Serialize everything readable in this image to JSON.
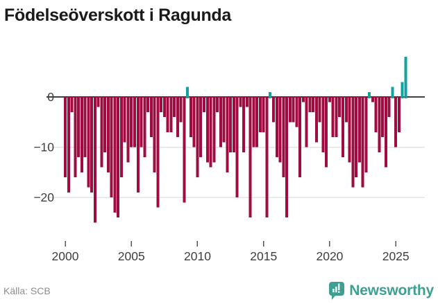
{
  "header": {
    "title": "Födelseöverskott i Ragunda"
  },
  "footer": {
    "source": "Källa: SCB",
    "logo_text": "Newsworthy"
  },
  "chart_data": {
    "type": "bar",
    "title": "Födelseöverskott i Ragunda",
    "frequency": "quarterly",
    "x_axis": {
      "start_year": 2000,
      "bars_per_year": 4,
      "ticks": [
        {
          "label": "2000",
          "year": 2000
        },
        {
          "label": "2005",
          "year": 2005
        },
        {
          "label": "2010",
          "year": 2010
        },
        {
          "label": "2015",
          "year": 2015
        },
        {
          "label": "2020",
          "year": 2020
        },
        {
          "label": "2025",
          "year": 2025
        }
      ]
    },
    "y_axis": {
      "ticks": [
        {
          "label": "0",
          "value": 0
        },
        {
          "label": "−10",
          "value": -10
        },
        {
          "label": "−20",
          "value": -20
        }
      ],
      "ylim": [
        -26,
        8.5
      ],
      "grid": true
    },
    "values": [
      -16,
      -19,
      -3,
      -16,
      -12,
      -15,
      -12,
      -18,
      -19,
      -25,
      -2,
      -14,
      -11,
      -15,
      -20,
      -23,
      -24,
      -16,
      -9,
      -13,
      -10,
      -10,
      -19,
      -10,
      -12,
      -3,
      -8,
      -15,
      -22,
      -3,
      -4,
      -7,
      -7,
      -4,
      -8,
      -5,
      -21,
      2,
      -8,
      -10,
      -16,
      -12,
      -3,
      -13,
      -14,
      -13,
      -3,
      -10,
      -9,
      -15,
      -11,
      -11,
      -20,
      -2,
      -11,
      -2,
      -24,
      -10,
      -10,
      -7,
      -7,
      -24,
      1,
      -5,
      -12,
      -13,
      -16,
      -24,
      -5,
      -5,
      -6,
      -16,
      -1,
      -10,
      -3,
      -3,
      -9,
      -5,
      -11,
      -14,
      -1,
      -8,
      -8,
      -4,
      -12,
      -5,
      -13,
      -18,
      -16,
      -13,
      -18,
      -15,
      1,
      -1,
      -7,
      -11,
      -8,
      -14,
      -4,
      2,
      -10,
      -7,
      3,
      8
    ],
    "colors": {
      "negative": "#9e0c41",
      "positive": "#12a2a2",
      "gridline": "#e4e4e4",
      "zero_line": "#3f3f3f",
      "tick": "#555555"
    },
    "legend": "none"
  }
}
